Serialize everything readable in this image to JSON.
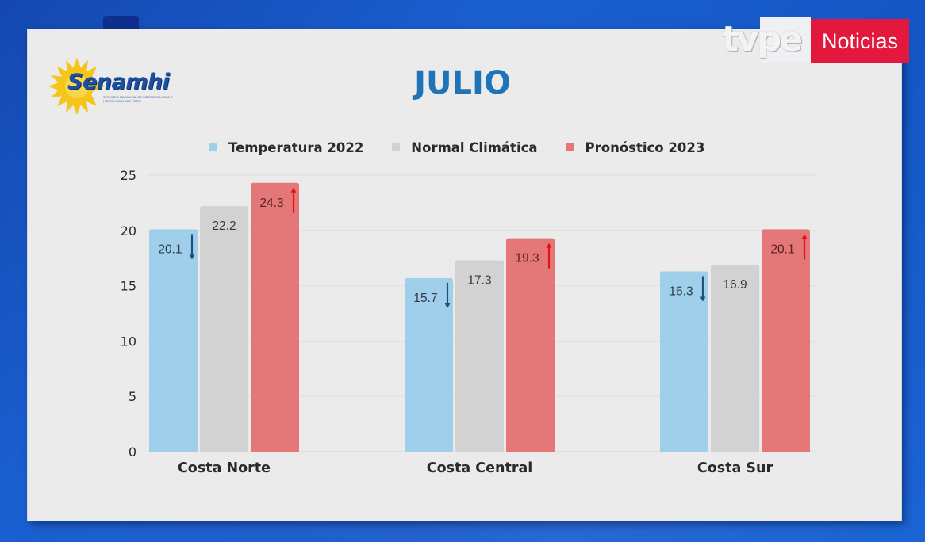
{
  "broadcast": {
    "channel_logo": "tvpe",
    "channel_section": "Noticias",
    "accent_color": "#e4173c"
  },
  "source_logo": {
    "name": "Senamhi",
    "subtitle": "SERVICIO NACIONAL DE METEOROLOGÍA E HIDROLOGÍA DEL PERÚ"
  },
  "colors": {
    "temperatura_2022": "#9fcfeb",
    "normal_climatica": "#d2d2d2",
    "pronostico_2023": "#e47878",
    "title": "#1f73b6",
    "arrow_down": "#1f4f7a",
    "arrow_up": "#e0141c"
  },
  "chart_data": {
    "type": "bar",
    "title": "JULIO",
    "xlabel": "",
    "ylabel": "",
    "ylim": [
      0,
      25
    ],
    "yticks": [
      0,
      5,
      10,
      15,
      20,
      25
    ],
    "grid": true,
    "legend_position": "top",
    "categories": [
      "Costa Norte",
      "Costa Central",
      "Costa Sur"
    ],
    "series": [
      {
        "name": "Temperatura 2022",
        "color_key": "temperatura_2022",
        "values": [
          20.1,
          15.7,
          16.3
        ],
        "labels": [
          "20.1",
          "15.7",
          "16.3"
        ],
        "trend_marker": "down"
      },
      {
        "name": "Normal Climática",
        "color_key": "normal_climatica",
        "values": [
          22.2,
          17.3,
          16.9
        ],
        "labels": [
          "22.2",
          "17.3",
          "16.9"
        ],
        "trend_marker": "none"
      },
      {
        "name": "Pronóstico 2023",
        "color_key": "pronostico_2023",
        "values": [
          24.3,
          19.3,
          20.1
        ],
        "labels": [
          "24.3",
          "19.3",
          "20.1"
        ],
        "trend_marker": "up"
      }
    ]
  }
}
